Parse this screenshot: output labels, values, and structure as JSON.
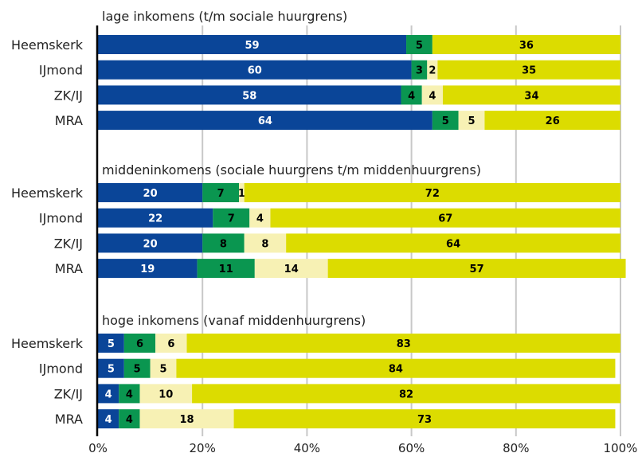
{
  "chart_data": {
    "type": "bar",
    "orientation": "horizontal",
    "stacked": true,
    "xlim": [
      0,
      100
    ],
    "x_ticks": [
      "0%",
      "20%",
      "40%",
      "60%",
      "80%",
      "100%"
    ],
    "grid": true,
    "colors": [
      "#0a4598",
      "#0a9650",
      "#f7f1b4",
      "#dcdc00"
    ],
    "label_colors": [
      "#ffffff",
      "#000000",
      "#000000",
      "#000000"
    ],
    "groups": [
      {
        "title": "lage inkomens (t/m sociale huurgrens)",
        "categories": [
          "Heemskerk",
          "IJmond",
          "ZK/IJ",
          "MRA"
        ],
        "values": [
          [
            59,
            5,
            0,
            36
          ],
          [
            60,
            3,
            2,
            35
          ],
          [
            58,
            4,
            4,
            34
          ],
          [
            64,
            5,
            5,
            26
          ]
        ]
      },
      {
        "title": "middeninkomens (sociale huurgrens t/m middenhuurgrens)",
        "categories": [
          "Heemskerk",
          "IJmond",
          "ZK/IJ",
          "MRA"
        ],
        "values": [
          [
            20,
            7,
            1,
            72
          ],
          [
            22,
            7,
            4,
            67
          ],
          [
            20,
            8,
            8,
            64
          ],
          [
            19,
            11,
            14,
            57
          ]
        ]
      },
      {
        "title": "hoge inkomens (vanaf middenhuurgrens)",
        "categories": [
          "Heemskerk",
          "IJmond",
          "ZK/IJ",
          "MRA"
        ],
        "values": [
          [
            5,
            6,
            6,
            83
          ],
          [
            5,
            5,
            5,
            84
          ],
          [
            4,
            4,
            10,
            82
          ],
          [
            4,
            4,
            18,
            73
          ]
        ]
      }
    ]
  }
}
